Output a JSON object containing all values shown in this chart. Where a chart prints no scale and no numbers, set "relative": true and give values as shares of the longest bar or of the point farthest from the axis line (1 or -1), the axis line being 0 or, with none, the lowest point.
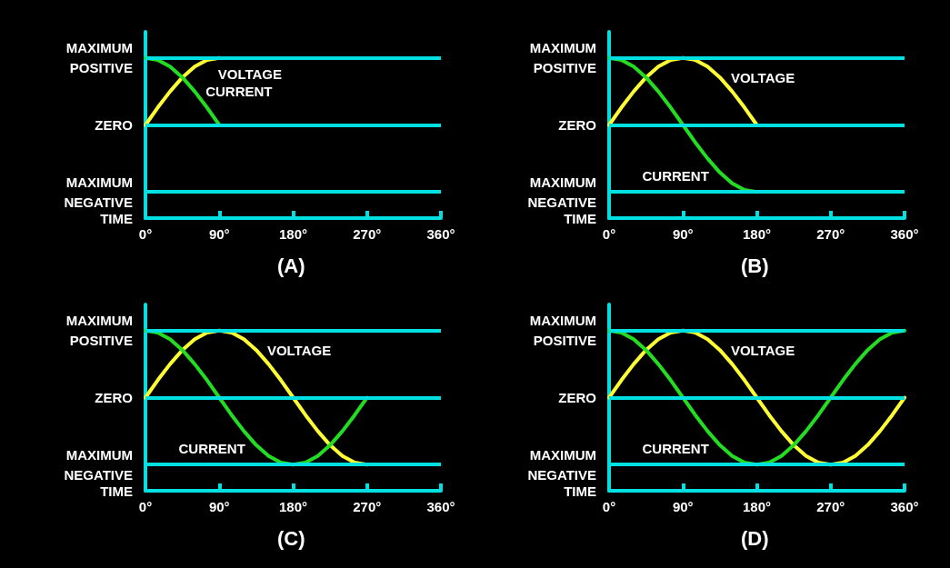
{
  "chart_data": [
    {
      "type": "line",
      "title": "(A)",
      "xlabel": "TIME",
      "marker": "none",
      "relative": true,
      "xlim": [
        0,
        360
      ],
      "xticks": [
        {
          "value": 0,
          "label": "0°"
        },
        {
          "value": 90,
          "label": "90°"
        },
        {
          "value": 180,
          "label": "180°"
        },
        {
          "value": 270,
          "label": "270°"
        },
        {
          "value": 360,
          "label": "360°"
        }
      ],
      "ref_lines": [
        {
          "axis": "y",
          "value": 1,
          "label": "MAXIMUM\nPOSITIVE",
          "color": "#00e0e0"
        },
        {
          "axis": "y",
          "value": 0,
          "label": "ZERO",
          "color": "#00e0e0"
        },
        {
          "axis": "y",
          "value": -1,
          "label": "MAXIMUM\nNEGATIVE",
          "color": "#00e0e0"
        }
      ],
      "series": [
        {
          "name": "VOLTAGE",
          "color": "#ffff33",
          "x": [
            0,
            15,
            30,
            45,
            60,
            75,
            90
          ],
          "values": [
            0,
            0.26,
            0.5,
            0.71,
            0.87,
            0.97,
            1
          ]
        },
        {
          "name": "CURRENT",
          "color": "#22dd22",
          "x": [
            0,
            15,
            30,
            45,
            60,
            75,
            90
          ],
          "values": [
            1,
            0.97,
            0.87,
            0.71,
            0.5,
            0.26,
            0
          ]
        }
      ]
    },
    {
      "type": "line",
      "title": "(B)",
      "xlabel": "TIME",
      "marker": "none",
      "relative": true,
      "xlim": [
        0,
        360
      ],
      "xticks": [
        {
          "value": 0,
          "label": "0°"
        },
        {
          "value": 90,
          "label": "90°"
        },
        {
          "value": 180,
          "label": "180°"
        },
        {
          "value": 270,
          "label": "270°"
        },
        {
          "value": 360,
          "label": "360°"
        }
      ],
      "ref_lines": [
        {
          "axis": "y",
          "value": 1,
          "label": "MAXIMUM\nPOSITIVE",
          "color": "#00e0e0"
        },
        {
          "axis": "y",
          "value": 0,
          "label": "ZERO",
          "color": "#00e0e0"
        },
        {
          "axis": "y",
          "value": -1,
          "label": "MAXIMUM\nNEGATIVE",
          "color": "#00e0e0"
        }
      ],
      "series": [
        {
          "name": "VOLTAGE",
          "color": "#ffff33",
          "x": [
            0,
            15,
            30,
            45,
            60,
            75,
            90,
            105,
            120,
            135,
            150,
            165,
            180
          ],
          "values": [
            0,
            0.26,
            0.5,
            0.71,
            0.87,
            0.97,
            1,
            0.97,
            0.87,
            0.71,
            0.5,
            0.26,
            0
          ]
        },
        {
          "name": "CURRENT",
          "color": "#22dd22",
          "x": [
            0,
            15,
            30,
            45,
            60,
            75,
            90,
            105,
            120,
            135,
            150,
            165,
            180
          ],
          "values": [
            1,
            0.97,
            0.87,
            0.71,
            0.5,
            0.26,
            0,
            -0.26,
            -0.5,
            -0.71,
            -0.87,
            -0.97,
            -1
          ]
        }
      ]
    },
    {
      "type": "line",
      "title": "(C)",
      "xlabel": "TIME",
      "marker": "none",
      "relative": true,
      "xlim": [
        0,
        360
      ],
      "xticks": [
        {
          "value": 0,
          "label": "0°"
        },
        {
          "value": 90,
          "label": "90°"
        },
        {
          "value": 180,
          "label": "180°"
        },
        {
          "value": 270,
          "label": "270°"
        },
        {
          "value": 360,
          "label": "360°"
        }
      ],
      "ref_lines": [
        {
          "axis": "y",
          "value": 1,
          "label": "MAXIMUM\nPOSITIVE",
          "color": "#00e0e0"
        },
        {
          "axis": "y",
          "value": 0,
          "label": "ZERO",
          "color": "#00e0e0"
        },
        {
          "axis": "y",
          "value": -1,
          "label": "MAXIMUM\nNEGATIVE",
          "color": "#00e0e0"
        }
      ],
      "series": [
        {
          "name": "VOLTAGE",
          "color": "#ffff33",
          "x": [
            0,
            15,
            30,
            45,
            60,
            75,
            90,
            105,
            120,
            135,
            150,
            165,
            180,
            195,
            210,
            225,
            240,
            255,
            270
          ],
          "values": [
            0,
            0.26,
            0.5,
            0.71,
            0.87,
            0.97,
            1,
            0.97,
            0.87,
            0.71,
            0.5,
            0.26,
            0,
            -0.26,
            -0.5,
            -0.71,
            -0.87,
            -0.97,
            -1
          ]
        },
        {
          "name": "CURRENT",
          "color": "#22dd22",
          "x": [
            0,
            15,
            30,
            45,
            60,
            75,
            90,
            105,
            120,
            135,
            150,
            165,
            180,
            195,
            210,
            225,
            240,
            255,
            270
          ],
          "values": [
            1,
            0.97,
            0.87,
            0.71,
            0.5,
            0.26,
            0,
            -0.26,
            -0.5,
            -0.71,
            -0.87,
            -0.97,
            -1,
            -0.97,
            -0.87,
            -0.71,
            -0.5,
            -0.26,
            0
          ]
        }
      ]
    },
    {
      "type": "line",
      "title": "(D)",
      "xlabel": "TIME",
      "marker": "none",
      "relative": true,
      "xlim": [
        0,
        360
      ],
      "xticks": [
        {
          "value": 0,
          "label": "0°"
        },
        {
          "value": 90,
          "label": "90°"
        },
        {
          "value": 180,
          "label": "180°"
        },
        {
          "value": 270,
          "label": "270°"
        },
        {
          "value": 360,
          "label": "360°"
        }
      ],
      "ref_lines": [
        {
          "axis": "y",
          "value": 1,
          "label": "MAXIMUM\nPOSITIVE",
          "color": "#00e0e0"
        },
        {
          "axis": "y",
          "value": 0,
          "label": "ZERO",
          "color": "#00e0e0"
        },
        {
          "axis": "y",
          "value": -1,
          "label": "MAXIMUM\nNEGATIVE",
          "color": "#00e0e0"
        }
      ],
      "series": [
        {
          "name": "VOLTAGE",
          "color": "#ffff33",
          "x": [
            0,
            15,
            30,
            45,
            60,
            75,
            90,
            105,
            120,
            135,
            150,
            165,
            180,
            195,
            210,
            225,
            240,
            255,
            270,
            285,
            300,
            315,
            330,
            345,
            360
          ],
          "values": [
            0,
            0.26,
            0.5,
            0.71,
            0.87,
            0.97,
            1,
            0.97,
            0.87,
            0.71,
            0.5,
            0.26,
            0,
            -0.26,
            -0.5,
            -0.71,
            -0.87,
            -0.97,
            -1,
            -0.97,
            -0.87,
            -0.71,
            -0.5,
            -0.26,
            0
          ]
        },
        {
          "name": "CURRENT",
          "color": "#22dd22",
          "x": [
            0,
            15,
            30,
            45,
            60,
            75,
            90,
            105,
            120,
            135,
            150,
            165,
            180,
            195,
            210,
            225,
            240,
            255,
            270,
            285,
            300,
            315,
            330,
            345,
            360
          ],
          "values": [
            1,
            0.97,
            0.87,
            0.71,
            0.5,
            0.26,
            0,
            -0.26,
            -0.5,
            -0.71,
            -0.87,
            -0.97,
            -1,
            -0.97,
            -0.87,
            -0.71,
            -0.5,
            -0.26,
            0,
            0.26,
            0.5,
            0.71,
            0.87,
            0.97,
            1
          ]
        }
      ]
    }
  ]
}
